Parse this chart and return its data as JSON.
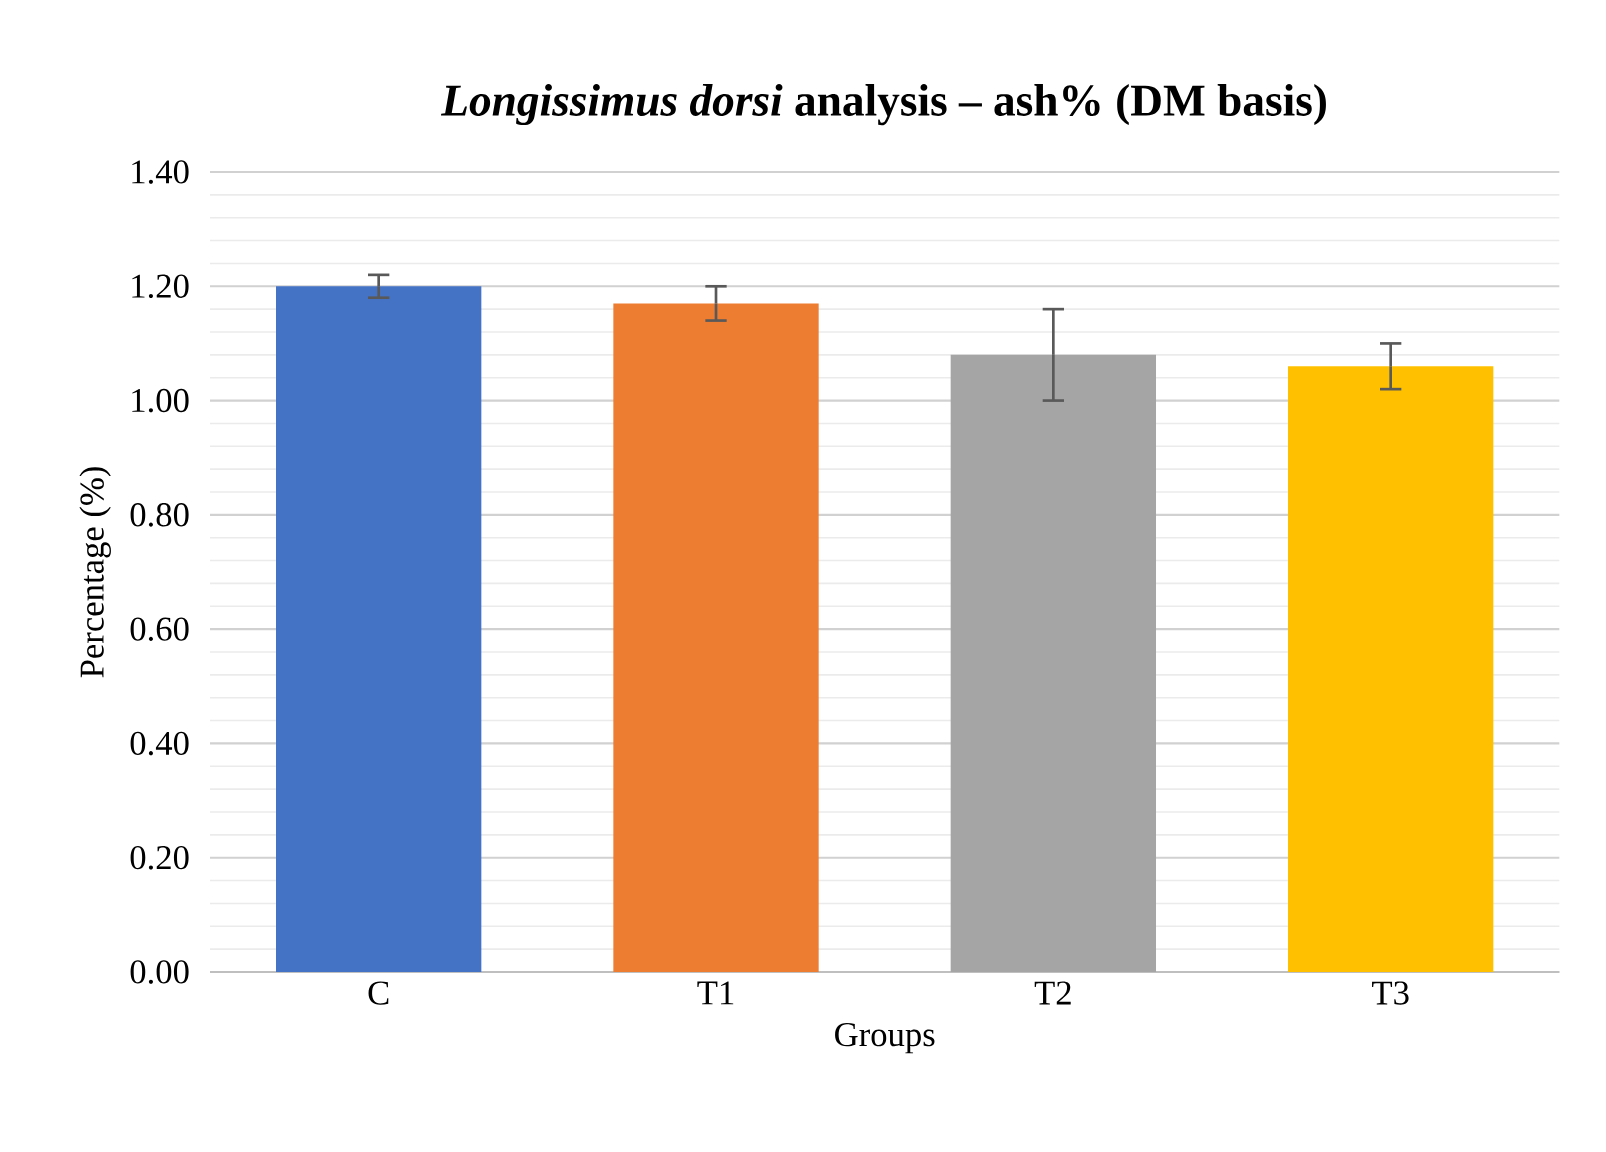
{
  "chart_data": {
    "type": "bar",
    "title": "*Longissimus dorsi* analysis – ash% (DM basis)",
    "xlabel": "Groups",
    "ylabel": "Percentage (%)",
    "categories": [
      "C",
      "T1",
      "T2",
      "T3"
    ],
    "values": [
      1.2,
      1.17,
      1.08,
      1.06
    ],
    "errors": [
      0.02,
      0.03,
      0.08,
      0.04
    ],
    "colors": [
      "#4472c4",
      "#ed7d31",
      "#a5a5a5",
      "#ffc000"
    ],
    "ylim": [
      0,
      1.4
    ],
    "yticks": [
      {
        "value": 0,
        "label": "0.00"
      },
      {
        "value": 0.2,
        "label": "0.20"
      },
      {
        "value": 0.4,
        "label": "0.40"
      },
      {
        "value": 0.6,
        "label": "0.60"
      },
      {
        "value": 0.8,
        "label": "0.80"
      },
      {
        "value": 1.0,
        "label": "1.00"
      },
      {
        "value": 1.2,
        "label": "1.20"
      },
      {
        "value": 1.4,
        "label": "1.40"
      }
    ],
    "grid": "y"
  }
}
